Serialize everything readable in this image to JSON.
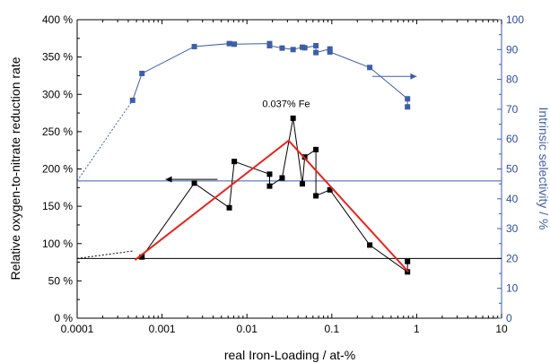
{
  "chart_data": {
    "type": "line",
    "x_axis": {
      "label": "real Iron-Loading / at-%",
      "scale": "log",
      "range": [
        0.0001,
        10
      ],
      "ticks": [
        {
          "value": 0.0001,
          "label": "0.0001"
        },
        {
          "value": 0.001,
          "label": "0.001"
        },
        {
          "value": 0.01,
          "label": "0.01"
        },
        {
          "value": 0.1,
          "label": "0.1"
        },
        {
          "value": 1,
          "label": "1"
        },
        {
          "value": 10,
          "label": "10"
        }
      ]
    },
    "y_left": {
      "label": "Relative oxygen-to-nitrate reduction rate",
      "range": [
        0,
        400
      ],
      "ticks": [
        {
          "value": 0,
          "label": "0 %"
        },
        {
          "value": 50,
          "label": "50 %"
        },
        {
          "value": 100,
          "label": "100 %"
        },
        {
          "value": 150,
          "label": "150 %"
        },
        {
          "value": 200,
          "label": "200 %"
        },
        {
          "value": 250,
          "label": "250 %"
        },
        {
          "value": 300,
          "label": "300 %"
        },
        {
          "value": 350,
          "label": "350 %"
        },
        {
          "value": 400,
          "label": "400 %"
        }
      ]
    },
    "y_right": {
      "label": "Intrinsic selectivity / %",
      "range": [
        0,
        100
      ],
      "ticks": [
        {
          "value": 0,
          "label": "0"
        },
        {
          "value": 10,
          "label": "10"
        },
        {
          "value": 20,
          "label": "20"
        },
        {
          "value": 30,
          "label": "30"
        },
        {
          "value": 40,
          "label": "40"
        },
        {
          "value": 50,
          "label": "50"
        },
        {
          "value": 60,
          "label": "60"
        },
        {
          "value": 70,
          "label": "70"
        },
        {
          "value": 80,
          "label": "80"
        },
        {
          "value": 90,
          "label": "90"
        },
        {
          "value": 100,
          "label": "100"
        }
      ]
    },
    "series": [
      {
        "axis": "left",
        "color": "#000000",
        "marker": "square",
        "points": [
          [
            0.00058,
            82
          ],
          [
            0.0024,
            181
          ],
          [
            0.0062,
            148
          ],
          [
            0.0071,
            210
          ],
          [
            0.0185,
            193
          ],
          [
            0.0185,
            177
          ],
          [
            0.026,
            188
          ],
          [
            0.035,
            268
          ],
          [
            0.045,
            180
          ],
          [
            0.048,
            216
          ],
          [
            0.065,
            226
          ],
          [
            0.065,
            164
          ],
          [
            0.095,
            172
          ],
          [
            0.28,
            98
          ],
          [
            0.78,
            62
          ],
          [
            0.78,
            76
          ]
        ],
        "dotted_extension": [
          [
            0.0001,
            80
          ],
          [
            0.00045,
            90
          ]
        ]
      },
      {
        "axis": "right",
        "color": "#3d5ea8",
        "marker": "square",
        "points": [
          [
            0.00045,
            73
          ],
          [
            0.00058,
            82
          ],
          [
            0.0024,
            91
          ],
          [
            0.0062,
            92
          ],
          [
            0.0071,
            91.8
          ],
          [
            0.0185,
            92
          ],
          [
            0.0185,
            91.3
          ],
          [
            0.026,
            90.5
          ],
          [
            0.035,
            90
          ],
          [
            0.045,
            90.8
          ],
          [
            0.048,
            90.6
          ],
          [
            0.065,
            91.3
          ],
          [
            0.065,
            89
          ],
          [
            0.095,
            90.2
          ],
          [
            0.095,
            89.2
          ],
          [
            0.28,
            84
          ],
          [
            0.78,
            73.5
          ],
          [
            0.78,
            70.8
          ]
        ],
        "dotted_extension": [
          [
            0.0001,
            46
          ],
          [
            0.00045,
            73
          ]
        ]
      },
      {
        "axis": "left",
        "color": "#e8231b",
        "marker": "none",
        "points": [
          [
            0.00048,
            78
          ],
          [
            0.031,
            238
          ],
          [
            0.8,
            62
          ]
        ]
      }
    ],
    "reference_lines": [
      {
        "axis": "left",
        "value": 80,
        "color": "#000000"
      },
      {
        "axis": "right",
        "value": 46,
        "color": "#3d5ea8"
      }
    ],
    "annotations": [
      {
        "text": "0.037% Fe",
        "x": 0.029,
        "y_left": 283
      },
      {
        "arrow": "left",
        "color": "#000000",
        "x_from": 0.0045,
        "x_to": 0.0011,
        "y_left": 186
      },
      {
        "arrow": "right",
        "color": "#3d5ea8",
        "x_from": 0.3,
        "x_to": 1.0,
        "y_right": 81
      }
    ],
    "grid": false,
    "legend": "none"
  }
}
